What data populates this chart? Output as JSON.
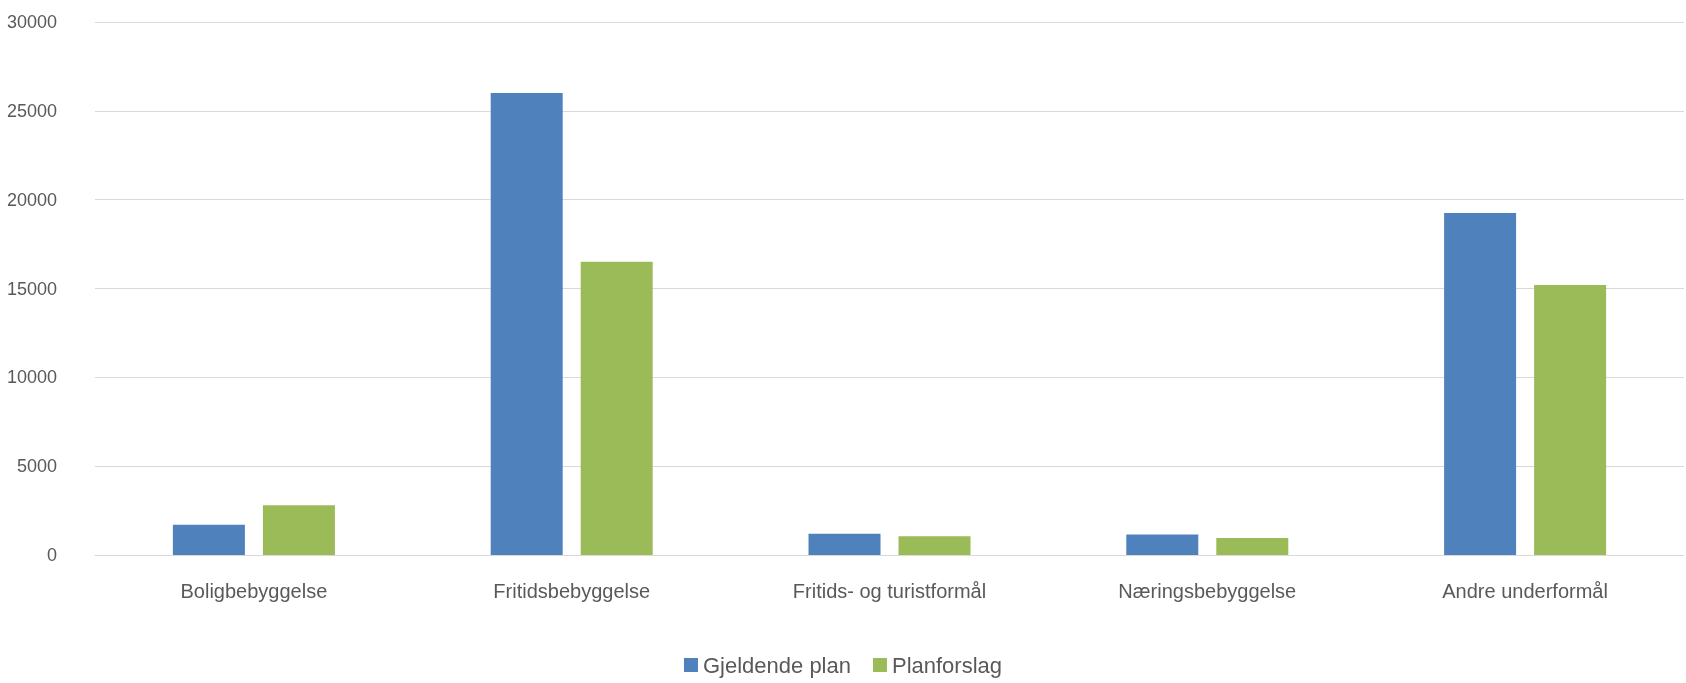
{
  "chart_data": {
    "type": "bar",
    "categories": [
      "Boligbebyggelse",
      "Fritidsbebyggelse",
      "Fritids- og turistformål",
      "Næringsbebyggelse",
      "Andre underformål"
    ],
    "series": [
      {
        "name": "Gjeldende plan",
        "color": "#4f81bd",
        "values": [
          1700,
          26000,
          1200,
          1150,
          19250
        ]
      },
      {
        "name": "Planforslag",
        "color": "#9bbb59",
        "values": [
          2800,
          16500,
          1050,
          950,
          15200
        ]
      }
    ],
    "ylim": [
      0,
      30000
    ],
    "yticks": [
      0,
      5000,
      10000,
      15000,
      20000,
      25000,
      30000
    ],
    "grid": "y",
    "legend": "bottom"
  }
}
